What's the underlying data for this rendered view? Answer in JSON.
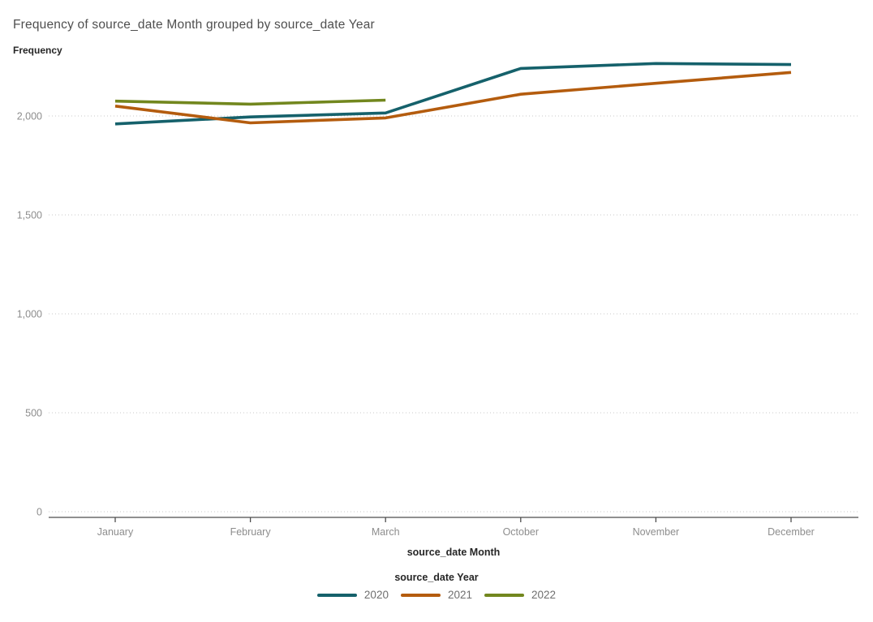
{
  "chart_data": {
    "type": "line",
    "title": "Frequency of source_date Month grouped by source_date Year",
    "ylabel": "Frequency",
    "xlabel": "source_date Month",
    "categories": [
      "January",
      "February",
      "March",
      "October",
      "November",
      "December"
    ],
    "series": [
      {
        "name": "2020",
        "color": "#15616b",
        "values": [
          1960,
          1995,
          2015,
          2240,
          2265,
          2260
        ]
      },
      {
        "name": "2021",
        "color": "#b45c0e",
        "values": [
          2050,
          1965,
          1990,
          2110,
          2165,
          2220
        ]
      },
      {
        "name": "2022",
        "color": "#72871e",
        "values": [
          2075,
          2060,
          2080,
          null,
          null,
          null
        ]
      }
    ],
    "y_ticks": [
      0,
      500,
      1000,
      1500,
      2000
    ],
    "y_tick_labels": [
      "0",
      "500",
      "1,000",
      "1,500",
      "2,000"
    ],
    "ylim": [
      0,
      2300
    ],
    "grid": "horizontal-dotted",
    "legend_title": "source_date Year",
    "legend_position": "bottom-center"
  },
  "style": {
    "grid_color": "#c9c9c9",
    "axis_color": "#4d4d4d",
    "tick_label_color": "#8d8d8d",
    "title_color": "#4f4f4f",
    "label_color": "#262626"
  }
}
